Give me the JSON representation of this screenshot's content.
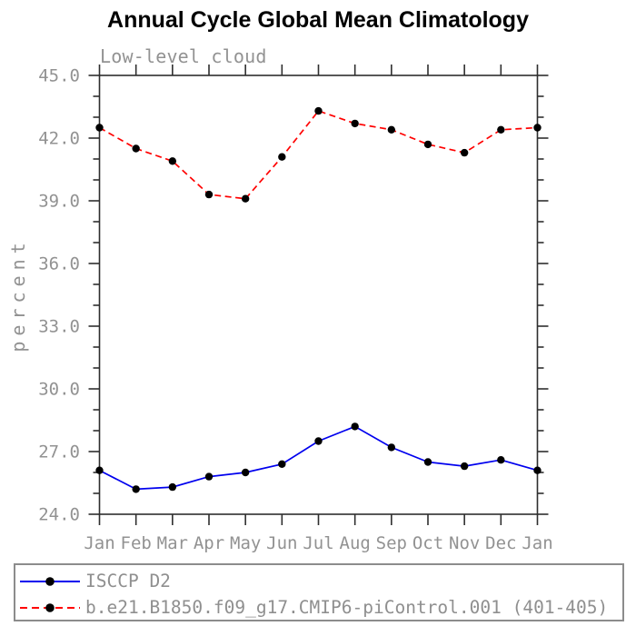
{
  "header": {
    "title": "Annual Cycle Global Mean Climatology"
  },
  "chart_data": {
    "type": "line",
    "title": "Annual Cycle Global Mean Climatology",
    "subtitle": "Low-level cloud",
    "xlabel": "",
    "ylabel": "percent",
    "categories": [
      "Jan",
      "Feb",
      "Mar",
      "Apr",
      "May",
      "Jun",
      "Jul",
      "Aug",
      "Sep",
      "Oct",
      "Nov",
      "Dec",
      "Jan"
    ],
    "series": [
      {
        "name": "ISCCP D2",
        "color": "#0000ee",
        "line_style": "solid",
        "marker": "filled-circle",
        "marker_color": "#000000",
        "values": [
          26.1,
          25.2,
          25.3,
          25.8,
          26.0,
          26.4,
          27.5,
          28.2,
          27.2,
          26.5,
          26.3,
          26.6,
          26.1
        ]
      },
      {
        "name": "b.e21.B1850.f09_g17.CMIP6-piControl.001 (401-405)",
        "color": "#ff0000",
        "line_style": "dashed",
        "marker": "filled-circle",
        "marker_color": "#000000",
        "values": [
          42.5,
          41.5,
          40.9,
          39.3,
          39.1,
          41.1,
          43.3,
          42.7,
          42.4,
          41.7,
          41.3,
          42.4,
          42.5
        ]
      }
    ],
    "ylim": [
      24,
      45
    ],
    "ytick_major_interval": 3,
    "ytick_minor_interval": 1,
    "ytick_labels": [
      "24.0",
      "27.0",
      "30.0",
      "33.0",
      "36.0",
      "39.0",
      "42.0",
      "45.0"
    ],
    "grid": false,
    "legend_position": "bottom",
    "frame_color": "#2e2e2e",
    "text_color": "#929292"
  }
}
